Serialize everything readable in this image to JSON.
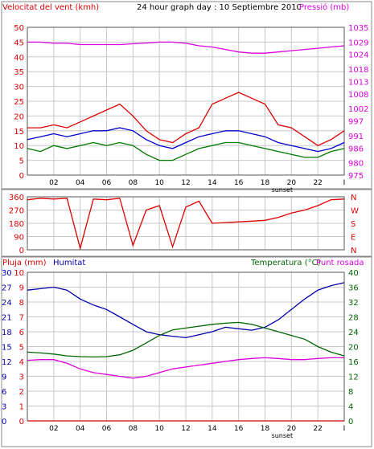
{
  "colors": {
    "wind": "#dd0000",
    "gust_avg": "#0000cc",
    "avg": "#007700",
    "pressure": "#dd00dd",
    "rain": "#cc0000",
    "humidity": "#0000aa",
    "temperature": "#006600",
    "dewpoint": "#dd00dd",
    "grid": "#c8c8c8"
  },
  "chart_data": [
    {
      "type": "line",
      "title": "24 hour graph day : 10 Septiembre 2010",
      "left_label": "Velocitat del vent (kmh)",
      "right_label": "Pressió (mb)",
      "x_ticks": [
        "02",
        "04",
        "06",
        "08",
        "10",
        "12",
        "14",
        "16",
        "18",
        "20",
        "22",
        "I"
      ],
      "sunset_label": "sunset",
      "y_left_ticks": [
        "0",
        "5",
        "10",
        "15",
        "20",
        "25",
        "30",
        "35",
        "40",
        "45",
        "50"
      ],
      "y_right_ticks": [
        "975",
        "980",
        "986",
        "991",
        "997",
        "1002",
        "1008",
        "1013",
        "1018",
        "1024",
        "1029",
        "1035"
      ],
      "ylim_left": [
        0,
        50
      ],
      "ylim_right": [
        975,
        1035
      ],
      "grid": true,
      "series": [
        {
          "name": "Gust",
          "axis": "left",
          "color": "#dd0000",
          "x": [
            0,
            1,
            2,
            3,
            4,
            5,
            6,
            7,
            8,
            9,
            10,
            11,
            12,
            13,
            14,
            15,
            16,
            17,
            18,
            19,
            20,
            21,
            22,
            23,
            24
          ],
          "values": [
            16,
            16,
            17,
            16,
            18,
            20,
            22,
            24,
            20,
            15,
            12,
            11,
            14,
            16,
            24,
            26,
            28,
            26,
            24,
            17,
            16,
            13,
            10,
            12,
            15
          ]
        },
        {
          "name": "Average",
          "axis": "left",
          "color": "#0000cc",
          "x": [
            0,
            1,
            2,
            3,
            4,
            5,
            6,
            7,
            8,
            9,
            10,
            11,
            12,
            13,
            14,
            15,
            16,
            17,
            18,
            19,
            20,
            21,
            22,
            23,
            24
          ],
          "values": [
            12,
            13,
            14,
            13,
            14,
            15,
            15,
            16,
            15,
            12,
            10,
            9,
            11,
            13,
            14,
            15,
            15,
            14,
            13,
            11,
            10,
            9,
            8,
            9,
            11
          ]
        },
        {
          "name": "Wind",
          "axis": "left",
          "color": "#007700",
          "x": [
            0,
            1,
            2,
            3,
            4,
            5,
            6,
            7,
            8,
            9,
            10,
            11,
            12,
            13,
            14,
            15,
            16,
            17,
            18,
            19,
            20,
            21,
            22,
            23,
            24
          ],
          "values": [
            9,
            8,
            10,
            9,
            10,
            11,
            10,
            11,
            10,
            7,
            5,
            5,
            7,
            9,
            10,
            11,
            11,
            10,
            9,
            8,
            7,
            6,
            6,
            8,
            9
          ]
        },
        {
          "name": "Pressure",
          "axis": "right",
          "color": "#dd00dd",
          "x": [
            0,
            1,
            2,
            3,
            4,
            5,
            6,
            7,
            8,
            9,
            10,
            11,
            12,
            13,
            14,
            15,
            16,
            17,
            18,
            19,
            20,
            21,
            22,
            23,
            24
          ],
          "values": [
            1029,
            1029,
            1028.5,
            1028.5,
            1028,
            1028,
            1028,
            1028,
            1028.3,
            1028.6,
            1029,
            1029,
            1028.5,
            1027.5,
            1027,
            1026,
            1025,
            1024.5,
            1024.5,
            1025,
            1025.5,
            1026,
            1026.5,
            1027,
            1027.5
          ]
        }
      ]
    },
    {
      "type": "line",
      "y_left_ticks": [
        "0",
        "90",
        "180",
        "270",
        "360"
      ],
      "y_right_labels": [
        "N",
        "W",
        "S",
        "E",
        "N"
      ],
      "ylim": [
        0,
        360
      ],
      "series": [
        {
          "name": "Direction",
          "color": "#dd0000",
          "x": [
            0,
            1,
            2,
            3,
            4,
            5,
            6,
            7,
            8,
            9,
            10,
            11,
            12,
            13,
            14,
            15,
            16,
            17,
            18,
            19,
            20,
            21,
            22,
            23,
            24
          ],
          "values": [
            340,
            350,
            345,
            350,
            10,
            345,
            340,
            350,
            30,
            270,
            300,
            20,
            290,
            330,
            180,
            185,
            190,
            195,
            200,
            220,
            250,
            270,
            300,
            340,
            345
          ]
        }
      ]
    },
    {
      "type": "line",
      "left_label": "Pluja (mm)",
      "left_label2": "Humitat",
      "right_label": "Temperatura (°C)",
      "right_label2": "Punt rosada",
      "x_ticks": [
        "02",
        "04",
        "06",
        "08",
        "10",
        "12",
        "14",
        "16",
        "18",
        "20",
        "22",
        "I"
      ],
      "sunset_label": "sunset",
      "y_rain_ticks": [
        "0",
        "1",
        "2",
        "3",
        "4",
        "5",
        "6",
        "7",
        "8",
        "9",
        "10"
      ],
      "y_hum_ticks": [
        "0",
        "3",
        "6",
        "9",
        "12",
        "15",
        "18",
        "21",
        "24",
        "27",
        "30"
      ],
      "y_right_ticks": [
        "0",
        "4",
        "8",
        "12",
        "16",
        "20",
        "24",
        "28",
        "32",
        "36",
        "40"
      ],
      "ylim_left": [
        0,
        100
      ],
      "ylim_right": [
        0,
        40
      ],
      "grid": true,
      "series": [
        {
          "name": "Rain",
          "axis": "left",
          "color": "#cc0000",
          "x": [
            0,
            24
          ],
          "values": [
            0,
            0
          ]
        },
        {
          "name": "Humidity",
          "axis": "left",
          "color": "#0000aa",
          "x": [
            0,
            1,
            2,
            3,
            4,
            5,
            6,
            7,
            8,
            9,
            10,
            11,
            12,
            13,
            14,
            15,
            16,
            17,
            18,
            19,
            20,
            21,
            22,
            23,
            24
          ],
          "values": [
            88,
            89,
            90,
            88,
            82,
            78,
            75,
            70,
            65,
            60,
            58,
            57,
            56,
            58,
            60,
            63,
            62,
            61,
            63,
            68,
            75,
            82,
            88,
            91,
            93
          ]
        },
        {
          "name": "Temperature",
          "axis": "right",
          "color": "#006600",
          "x": [
            0,
            1,
            2,
            3,
            4,
            5,
            6,
            7,
            8,
            9,
            10,
            11,
            12,
            13,
            14,
            15,
            16,
            17,
            18,
            19,
            20,
            21,
            22,
            23,
            24
          ],
          "values": [
            18.5,
            18.3,
            18,
            17.5,
            17.3,
            17.2,
            17.3,
            17.8,
            19,
            21,
            23,
            24.5,
            25,
            25.5,
            26,
            26.3,
            26.5,
            26,
            25,
            24,
            23,
            22,
            20,
            18.5,
            17.5
          ]
        },
        {
          "name": "Dewpoint",
          "axis": "right",
          "color": "#dd00dd",
          "x": [
            0,
            1,
            2,
            3,
            4,
            5,
            6,
            7,
            8,
            9,
            10,
            11,
            12,
            13,
            14,
            15,
            16,
            17,
            18,
            19,
            20,
            21,
            22,
            23,
            24
          ],
          "values": [
            16.3,
            16.5,
            16.5,
            15.5,
            14,
            13,
            12.5,
            12,
            11.5,
            12,
            13,
            14,
            14.5,
            15,
            15.5,
            16,
            16.5,
            16.8,
            17,
            16.8,
            16.5,
            16.5,
            16.8,
            17,
            17
          ]
        }
      ]
    }
  ]
}
